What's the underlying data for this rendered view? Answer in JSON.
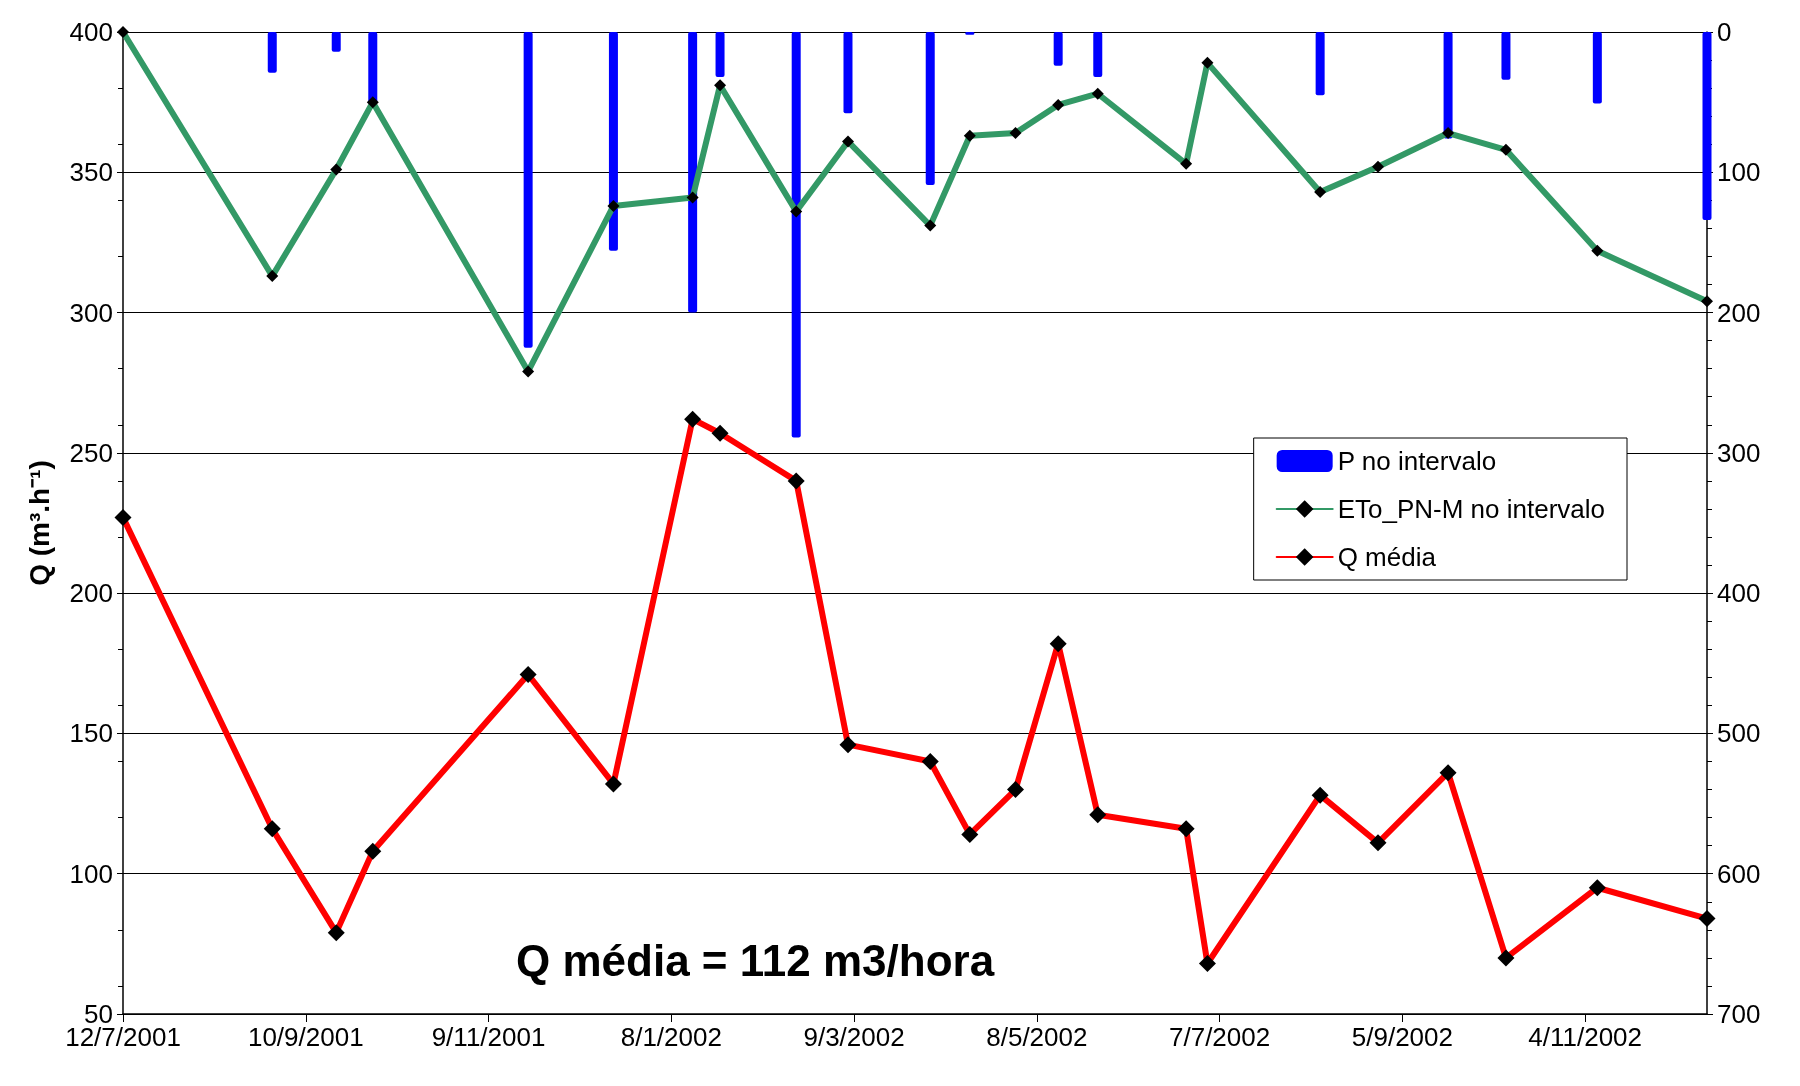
{
  "chart_data": {
    "type": "line",
    "ylabel": "Q (m³.h⁻¹)",
    "x": [
      "2001-07-12",
      "2001-08-30",
      "2001-09-20",
      "2001-10-02",
      "2001-11-22",
      "2001-12-20",
      "2002-01-15",
      "2002-01-24",
      "2002-02-18",
      "2002-03-07",
      "2002-04-03",
      "2002-04-16",
      "2002-05-01",
      "2002-05-15",
      "2002-05-28",
      "2002-06-26",
      "2002-07-03",
      "2002-08-09",
      "2002-08-28",
      "2002-09-20",
      "2002-10-09",
      "2002-11-08",
      "2002-12-14"
    ],
    "xlim": [
      "2001-07-12",
      "2002-12-14"
    ],
    "xticks": [
      {
        "value": "2001-07-12",
        "label": "12/7/2001"
      },
      {
        "value": "2001-09-10",
        "label": "10/9/2001"
      },
      {
        "value": "2001-11-09",
        "label": "9/11/2001"
      },
      {
        "value": "2002-01-08",
        "label": "8/1/2002"
      },
      {
        "value": "2002-03-09",
        "label": "9/3/2002"
      },
      {
        "value": "2002-05-08",
        "label": "8/5/2002"
      },
      {
        "value": "2002-07-07",
        "label": "7/7/2002"
      },
      {
        "value": "2002-09-05",
        "label": "5/9/2002"
      },
      {
        "value": "2002-11-04",
        "label": "4/11/2002"
      }
    ],
    "ylim": [
      50,
      400
    ],
    "yticks": [
      50,
      100,
      150,
      200,
      250,
      300,
      350,
      400
    ],
    "y2lim": [
      700,
      0
    ],
    "y2ticks": [
      0,
      100,
      200,
      300,
      400,
      500,
      600,
      700
    ],
    "series": [
      {
        "name": "P no intervalo",
        "type": "bar",
        "axis": "y2",
        "color": "#0000ff",
        "x": [
          "2001-08-30",
          "2001-09-20",
          "2001-10-02",
          "2001-11-22",
          "2001-12-20",
          "2002-01-15",
          "2002-01-24",
          "2002-02-18",
          "2002-03-07",
          "2002-04-03",
          "2002-04-16",
          "2002-05-15",
          "2002-05-28",
          "2002-08-09",
          "2002-09-20",
          "2002-10-09",
          "2002-11-08",
          "2002-12-14"
        ],
        "values": [
          29,
          14,
          50,
          225,
          156,
          200,
          32,
          289,
          58,
          109,
          2,
          24,
          32,
          45,
          76,
          34,
          51,
          134
        ]
      },
      {
        "name": "ETo_PN-M no intervalo",
        "color": "#339966",
        "values": [
          400,
          313,
          351,
          375,
          279,
          338,
          341,
          381,
          336,
          361,
          331,
          363,
          364,
          374,
          378,
          353,
          389,
          343,
          352,
          364,
          358,
          322,
          304
        ]
      },
      {
        "name": "Q média",
        "color": "#ff0000",
        "values": [
          227,
          116,
          79,
          108,
          171,
          132,
          262,
          257,
          240,
          146,
          140,
          114,
          130,
          182,
          121,
          116,
          68,
          128,
          111,
          136,
          70,
          95,
          84
        ]
      }
    ],
    "marker": "diamond",
    "grid": "y",
    "legend": "right",
    "annotations": [
      "Q média = 112 m3/hora"
    ]
  }
}
